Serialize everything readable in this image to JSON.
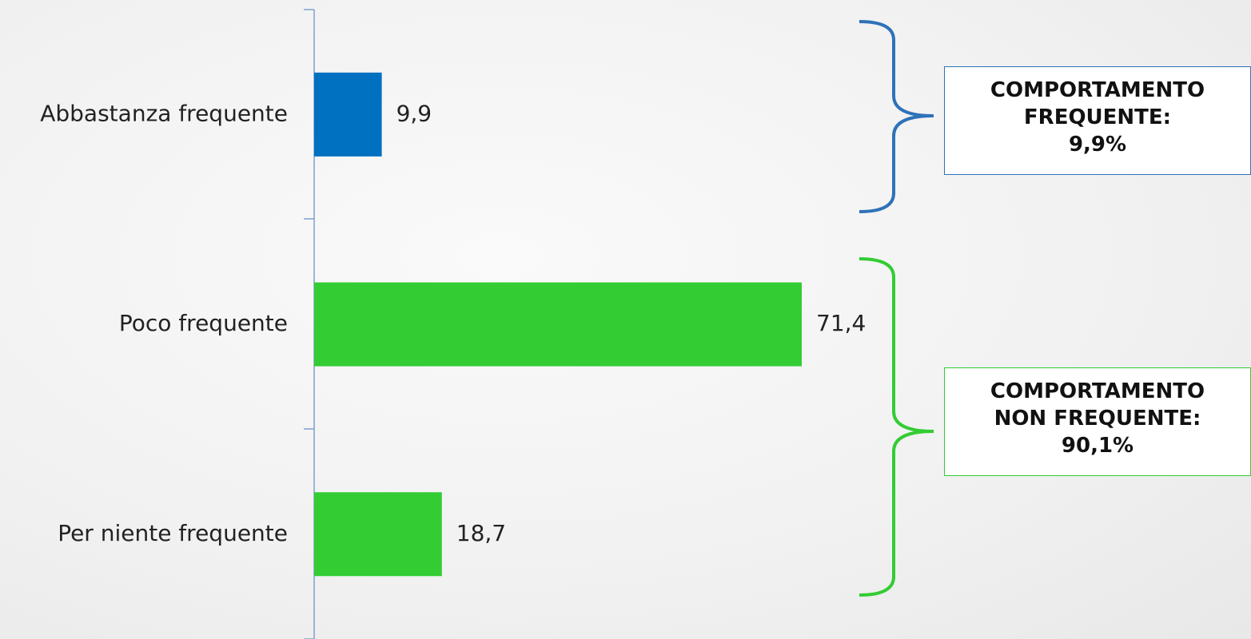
{
  "chart_data": {
    "type": "bar",
    "orientation": "horizontal",
    "categories": [
      "Abbastanza frequente",
      "Poco frequente",
      "Per niente frequente"
    ],
    "values": [
      9.9,
      71.4,
      18.7
    ],
    "value_labels": [
      "9,9",
      "71,4",
      "18,7"
    ],
    "bar_colors": [
      "#0070c0",
      "#33cc33",
      "#33cc33"
    ],
    "xlim": [
      0,
      80
    ],
    "grid": false,
    "title": "",
    "xlabel": "",
    "ylabel": ""
  },
  "callouts": [
    {
      "lines": [
        "COMPORTAMENTO",
        "FREQUENTE:",
        "9,9%"
      ],
      "color": "#0070c0"
    },
    {
      "lines": [
        "COMPORTAMENTO",
        "NON FREQUENTE:",
        "90,1%"
      ],
      "color": "#33cc33"
    }
  ],
  "colors": {
    "axis": "#7f9fd0",
    "blue": "#0070c0",
    "green": "#33cc33"
  }
}
